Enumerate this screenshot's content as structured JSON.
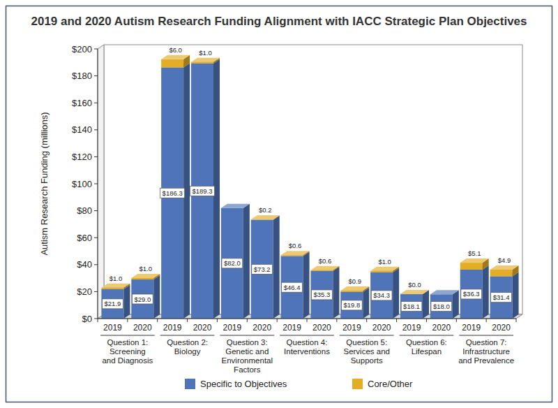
{
  "chart_data": {
    "type": "bar",
    "title": "2019 and 2020 Autism Research Funding Alignment with IACC Strategic Plan Objectives",
    "y_label": "Autism Research Funding (millions)",
    "categories": [
      "2019",
      "2020",
      "2019",
      "2020",
      "2019",
      "2020",
      "2019",
      "2020",
      "2019",
      "2020",
      "2019",
      "2020",
      "2019",
      "2020"
    ],
    "group_labels": [
      "Question 1:\nScreening\nand Diagnosis",
      "Question 2:\nBiology",
      "Question 3:\nGenetic and\nEnvironmental\nFactors",
      "Question 4:\nInterventions",
      "Question 5:\nServices and\nSupports",
      "Question 6:\nLifespan",
      "Question 7:\nInfrastructure\nand Prevalence"
    ],
    "series": [
      {
        "name": "Specific to Objectives",
        "color": "#4f74b8",
        "values": [
          21.9,
          29.0,
          186.3,
          189.3,
          82.0,
          73.2,
          46.4,
          35.3,
          19.8,
          34.3,
          18.1,
          18.0,
          36.3,
          31.4
        ],
        "value_labels": [
          "$21.9",
          "$29.0",
          "$186.3",
          "$189.3",
          "$82.0",
          "$73.2",
          "$46.4",
          "$35.3",
          "$19.8",
          "$34.3",
          "$18.1",
          "$18.0",
          "$36.3",
          "$31.4"
        ]
      },
      {
        "name": "Core/Other",
        "color": "#e3ad25",
        "values": [
          1.0,
          1.0,
          6.0,
          1.0,
          null,
          0.2,
          0.6,
          0.6,
          0.9,
          1.0,
          0.0,
          null,
          5.1,
          4.9
        ],
        "value_labels": [
          "$1.0",
          "$1.0",
          "$6.0",
          "$1.0",
          null,
          "$0.2",
          "$0.6",
          "$0.6",
          "$0.9",
          "$1.0",
          "$0.0",
          null,
          "$5.1",
          "$4.9"
        ]
      }
    ],
    "ylim": [
      0,
      200
    ],
    "yticks": [
      {
        "value": 0,
        "label": "$0"
      },
      {
        "value": 20,
        "label": "$20"
      },
      {
        "value": 40,
        "label": "$40"
      },
      {
        "value": 60,
        "label": "$60"
      },
      {
        "value": 80,
        "label": "$80"
      },
      {
        "value": 100,
        "label": "$100"
      },
      {
        "value": 120,
        "label": "$120"
      },
      {
        "value": 140,
        "label": "$140"
      },
      {
        "value": 160,
        "label": "$160"
      },
      {
        "value": 180,
        "label": "$180"
      },
      {
        "value": 200,
        "label": "$200"
      }
    ],
    "stacked": true,
    "grid": false,
    "legend": "bottom",
    "data_labels": true
  }
}
